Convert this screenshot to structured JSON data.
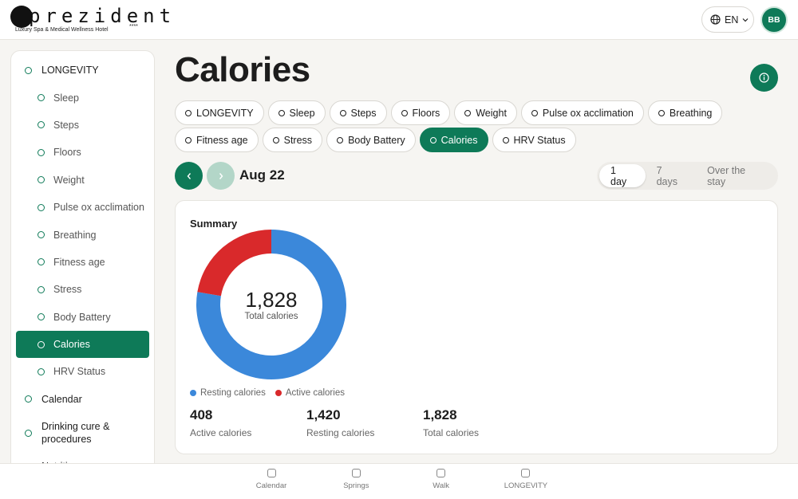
{
  "header": {
    "logo": "prezident",
    "tagline": "Luxury Spa & Medical Wellness Hotel",
    "stars": "****",
    "language": "EN",
    "avatar": "BB"
  },
  "sidebar": {
    "items": [
      {
        "label": "LONGEVITY",
        "level": "top"
      },
      {
        "label": "Sleep",
        "level": "sub"
      },
      {
        "label": "Steps",
        "level": "sub"
      },
      {
        "label": "Floors",
        "level": "sub"
      },
      {
        "label": "Weight",
        "level": "sub"
      },
      {
        "label": "Pulse ox acclimation",
        "level": "sub"
      },
      {
        "label": "Breathing",
        "level": "sub"
      },
      {
        "label": "Fitness age",
        "level": "sub"
      },
      {
        "label": "Stress",
        "level": "sub"
      },
      {
        "label": "Body Battery",
        "level": "sub"
      },
      {
        "label": "Calories",
        "level": "sub",
        "active": true
      },
      {
        "label": "HRV Status",
        "level": "sub"
      },
      {
        "label": "Calendar",
        "level": "top"
      },
      {
        "label": "Drinking cure & procedures",
        "level": "top"
      },
      {
        "label": "Nutrition",
        "level": "top"
      }
    ]
  },
  "page": {
    "title": "Calories",
    "tabs": [
      {
        "label": "LONGEVITY"
      },
      {
        "label": "Sleep"
      },
      {
        "label": "Steps"
      },
      {
        "label": "Floors"
      },
      {
        "label": "Weight"
      },
      {
        "label": "Pulse ox acclimation"
      },
      {
        "label": "Breathing"
      },
      {
        "label": "Fitness age"
      },
      {
        "label": "Stress"
      },
      {
        "label": "Body Battery"
      },
      {
        "label": "Calories",
        "active": true
      },
      {
        "label": "HRV Status"
      }
    ],
    "date": "Aug 22",
    "ranges": [
      {
        "label": "1 day",
        "active": true
      },
      {
        "label": "7 days"
      },
      {
        "label": "Over the stay"
      }
    ]
  },
  "card": {
    "title": "Summary",
    "stats": [
      {
        "value": "408",
        "label": "Active calories"
      },
      {
        "value": "1,420",
        "label": "Resting calories"
      },
      {
        "value": "1,828",
        "label": "Total calories"
      }
    ]
  },
  "chart_data": {
    "type": "donut",
    "categories": [
      "Resting calories",
      "Active calories"
    ],
    "values": [
      1420,
      408
    ],
    "colors": [
      "#3b88da",
      "#d9292b"
    ],
    "center_value": "1,828",
    "center_caption": "Total calories"
  },
  "bottom_nav": [
    {
      "label": "Calendar"
    },
    {
      "label": "Springs"
    },
    {
      "label": "Walk"
    },
    {
      "label": "LONGEVITY"
    }
  ]
}
